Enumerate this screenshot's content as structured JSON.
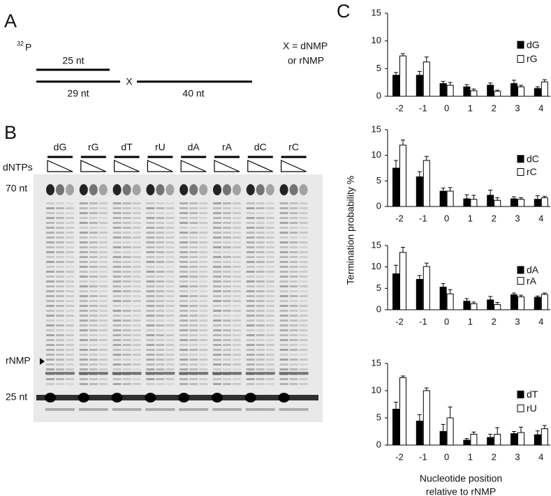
{
  "panel_a": {
    "label": "A",
    "isotope": "32",
    "isotope_element": "P",
    "primer": "25 nt",
    "template_left": "29 nt",
    "x_mark": "X",
    "template_right": "40 nt",
    "legend_lines": [
      "X = dNMP",
      "or rNMP"
    ]
  },
  "panel_b": {
    "label": "B",
    "lanes": [
      "dG",
      "rG",
      "dT",
      "rU",
      "dA",
      "rA",
      "dC",
      "rC"
    ],
    "dntps": "dNTPs",
    "markers": [
      "70 nt",
      "rNMP",
      "25 nt"
    ]
  },
  "panel_c": {
    "label": "C",
    "ylabel": "Termination probability %",
    "xlabel_lines": [
      "Nucleotide position",
      "relative to rNMP"
    ]
  },
  "chart_data": [
    {
      "type": "bar",
      "categories": [
        "-2",
        "-1",
        "0",
        "1",
        "2",
        "3",
        "4"
      ],
      "ylim": [
        0,
        15
      ],
      "yticks": [
        0,
        5,
        10,
        15
      ],
      "series": [
        {
          "name": "dG",
          "color": "#000000",
          "values": [
            3.8,
            3.8,
            2.3,
            1.7,
            2.0,
            2.3,
            1.4
          ],
          "errors": [
            0.5,
            0.7,
            0.4,
            0.4,
            0.4,
            0.6,
            0.3
          ]
        },
        {
          "name": "rG",
          "color": "#ffffff",
          "values": [
            7.3,
            6.2,
            2.0,
            1.0,
            0.9,
            1.7,
            2.6
          ],
          "errors": [
            0.4,
            0.9,
            0.5,
            0.3,
            0.2,
            0.3,
            0.4
          ]
        }
      ]
    },
    {
      "type": "bar",
      "categories": [
        "-2",
        "-1",
        "0",
        "1",
        "2",
        "3",
        "4"
      ],
      "ylim": [
        0,
        15
      ],
      "yticks": [
        0,
        5,
        10,
        15
      ],
      "series": [
        {
          "name": "dC",
          "color": "#000000",
          "values": [
            7.5,
            5.8,
            3.0,
            1.5,
            2.2,
            1.5,
            1.4
          ],
          "errors": [
            1.5,
            1.0,
            0.6,
            0.8,
            1.0,
            0.4,
            0.7
          ]
        },
        {
          "name": "rC",
          "color": "#ffffff",
          "values": [
            12.0,
            9.0,
            3.0,
            1.4,
            1.2,
            1.4,
            1.7
          ],
          "errors": [
            1.0,
            0.8,
            0.7,
            0.8,
            0.5,
            0.3,
            0.3
          ]
        }
      ]
    },
    {
      "type": "bar",
      "categories": [
        "-2",
        "-1",
        "0",
        "1",
        "2",
        "3",
        "4"
      ],
      "ylim": [
        0,
        15
      ],
      "yticks": [
        0,
        5,
        10,
        15
      ],
      "series": [
        {
          "name": "dA",
          "color": "#000000",
          "values": [
            8.4,
            7.1,
            5.3,
            2.0,
            2.3,
            3.5,
            2.9
          ],
          "errors": [
            2.0,
            0.9,
            0.8,
            0.6,
            0.8,
            0.4,
            0.3
          ]
        },
        {
          "name": "rA",
          "color": "#ffffff",
          "values": [
            13.4,
            10.1,
            3.7,
            1.4,
            1.2,
            3.0,
            3.6
          ],
          "errors": [
            1.2,
            0.8,
            1.0,
            0.4,
            0.5,
            0.4,
            0.3
          ]
        }
      ]
    },
    {
      "type": "bar",
      "categories": [
        "-2",
        "-1",
        "0",
        "1",
        "2",
        "3",
        "4"
      ],
      "ylim": [
        0,
        15
      ],
      "yticks": [
        0,
        5,
        10,
        15
      ],
      "series": [
        {
          "name": "dT",
          "color": "#000000",
          "values": [
            6.6,
            4.4,
            2.5,
            0.9,
            1.4,
            2.1,
            1.9
          ],
          "errors": [
            1.3,
            1.2,
            1.3,
            0.3,
            0.6,
            0.4,
            0.7
          ]
        },
        {
          "name": "rU",
          "color": "#ffffff",
          "values": [
            12.4,
            10.0,
            5.0,
            2.0,
            2.0,
            2.3,
            3.0
          ],
          "errors": [
            0.3,
            0.5,
            2.0,
            0.4,
            1.2,
            1.0,
            0.6
          ]
        }
      ]
    }
  ]
}
